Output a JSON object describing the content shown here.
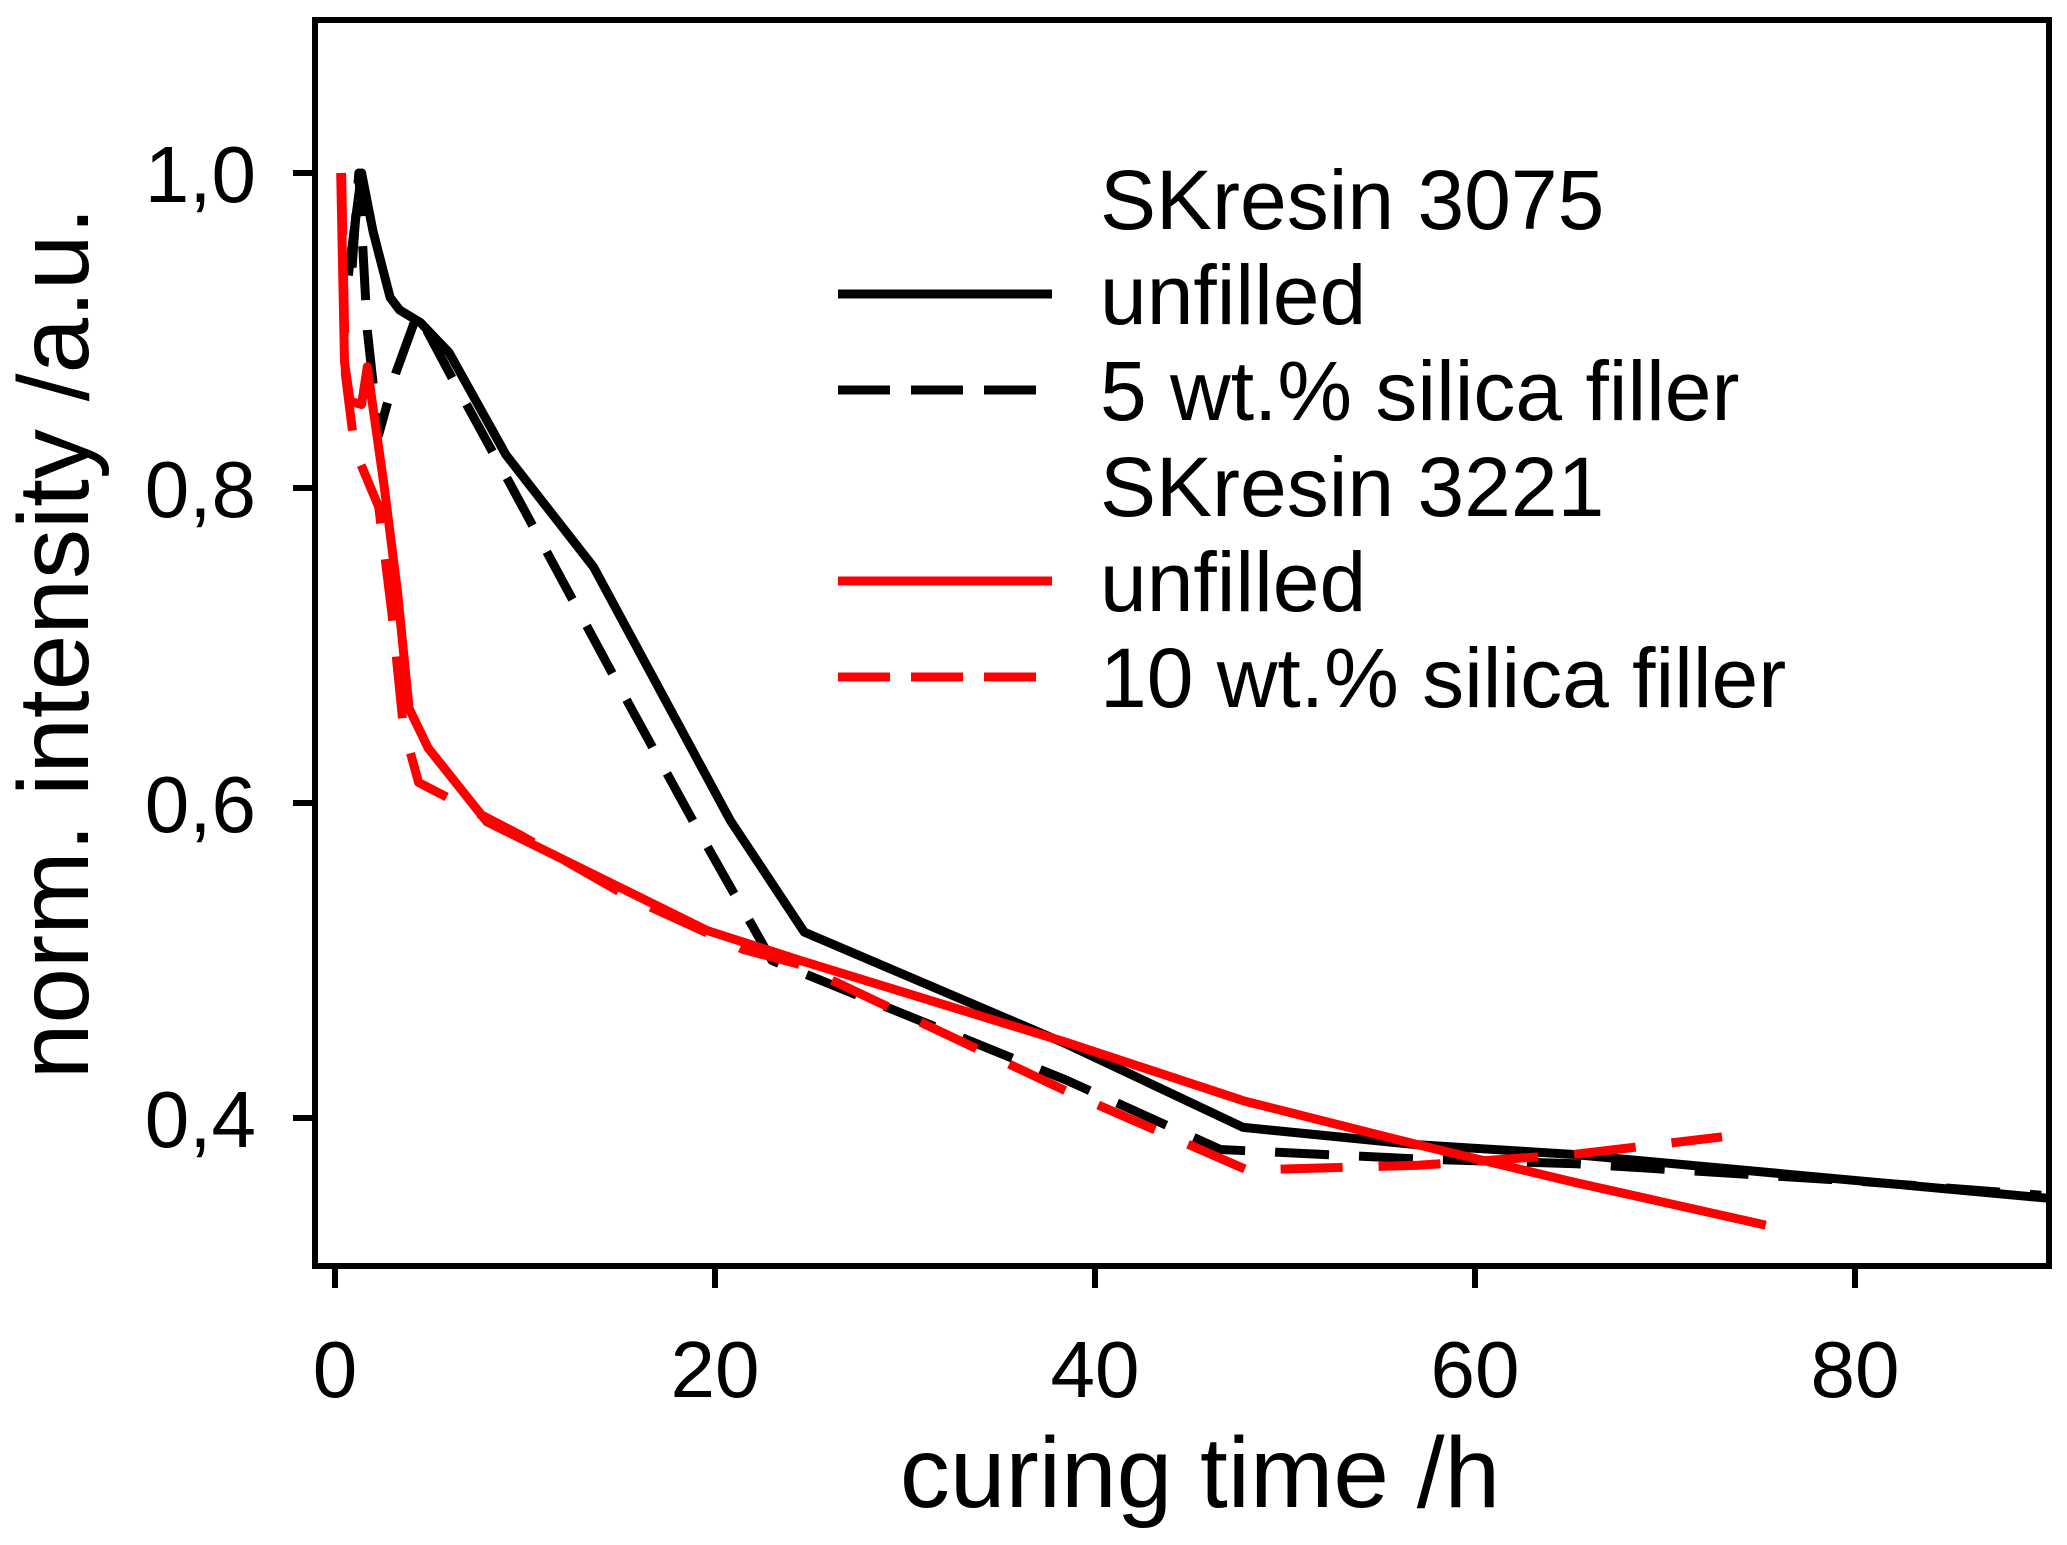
{
  "figure": {
    "background_color": "#ffffff",
    "accent_colors": {
      "black": "#000000",
      "red": "#ff0000"
    }
  },
  "chart_data": {
    "type": "line",
    "title": "",
    "xlabel": "curing time /h",
    "ylabel": "norm. intensity /a.u.",
    "xlim": [
      -1.05,
      90.2
    ],
    "ylim": [
      0.306,
      1.097
    ],
    "grid": false,
    "decimal_separator": "comma",
    "xticks": {
      "values": [
        0,
        20,
        40,
        60,
        80
      ],
      "labels": [
        "0",
        "20",
        "40",
        "60",
        "80"
      ]
    },
    "yticks": {
      "values": [
        1.0,
        0.8,
        0.6,
        0.4
      ],
      "labels": [
        "1,0",
        "0,8",
        "0,6",
        "0,4"
      ]
    },
    "legend": {
      "position": "upper right",
      "rows": [
        {
          "kind": "group-title",
          "label": "SKresin 3075"
        },
        {
          "kind": "entry",
          "label": "unfilled",
          "color": "#000000",
          "style": "solid"
        },
        {
          "kind": "entry",
          "label": "5 wt.% silica filler",
          "color": "#000000",
          "style": "dashed"
        },
        {
          "kind": "group-title",
          "label": "SKresin 3221"
        },
        {
          "kind": "entry",
          "label": "unfilled",
          "color": "#ff0000",
          "style": "solid"
        },
        {
          "kind": "entry",
          "label": "10 wt.% silica filler",
          "color": "#ff0000",
          "style": "dashed"
        }
      ]
    },
    "series": [
      {
        "name": "SKresin 3075 unfilled",
        "color": "#000000",
        "style": "solid",
        "points": [
          [
            0.7,
            0.935
          ],
          [
            1.4,
            1.0
          ],
          [
            2.0,
            0.963
          ],
          [
            2.9,
            0.921
          ],
          [
            3.4,
            0.913
          ],
          [
            4.5,
            0.905
          ],
          [
            6.0,
            0.886
          ],
          [
            9.0,
            0.821
          ],
          [
            13.6,
            0.75
          ],
          [
            20.8,
            0.589
          ],
          [
            24.7,
            0.518
          ],
          [
            38.5,
            0.447
          ],
          [
            47.8,
            0.394
          ],
          [
            57.0,
            0.383
          ],
          [
            65.0,
            0.377
          ],
          [
            90.2,
            0.349
          ]
        ]
      },
      {
        "name": "SKresin 3075 5 wt.% silica filler",
        "color": "#000000",
        "style": "dashed",
        "points": [
          [
            0.9,
            0.94
          ],
          [
            1.25,
            1.0
          ],
          [
            1.7,
            0.9
          ],
          [
            2.3,
            0.834
          ],
          [
            3.2,
            0.873
          ],
          [
            4.35,
            0.911
          ],
          [
            6.2,
            0.869
          ],
          [
            9.2,
            0.803
          ],
          [
            15.5,
            0.662
          ],
          [
            19.1,
            0.583
          ],
          [
            23.0,
            0.5
          ],
          [
            38.5,
            0.424
          ],
          [
            46.6,
            0.38
          ],
          [
            57.0,
            0.374
          ],
          [
            65.3,
            0.371
          ],
          [
            80.0,
            0.36
          ],
          [
            89.8,
            0.351
          ]
        ]
      },
      {
        "name": "SKresin 3221 unfilled",
        "color": "#ff0000",
        "style": "solid",
        "points": [
          [
            0.3,
            1.0
          ],
          [
            0.5,
            0.88
          ],
          [
            0.8,
            0.855
          ],
          [
            1.4,
            0.853
          ],
          [
            1.7,
            0.877
          ],
          [
            2.0,
            0.851
          ],
          [
            2.6,
            0.8
          ],
          [
            3.3,
            0.733
          ],
          [
            3.9,
            0.66
          ],
          [
            4.9,
            0.635
          ],
          [
            8.0,
            0.588
          ],
          [
            19.6,
            0.519
          ],
          [
            24.5,
            0.5
          ],
          [
            38.5,
            0.448
          ],
          [
            47.8,
            0.411
          ],
          [
            57.0,
            0.383
          ],
          [
            65.3,
            0.359
          ],
          [
            75.3,
            0.332
          ]
        ]
      },
      {
        "name": "SKresin 3221 10 wt.% silica filler",
        "color": "#ff0000",
        "style": "dashed",
        "points": [
          [
            0.35,
            1.0
          ],
          [
            0.55,
            0.872
          ],
          [
            1.05,
            0.824
          ],
          [
            2.3,
            0.788
          ],
          [
            3.0,
            0.72
          ],
          [
            3.6,
            0.648
          ],
          [
            4.4,
            0.613
          ],
          [
            9.7,
            0.58
          ],
          [
            15.5,
            0.54
          ],
          [
            21.5,
            0.507
          ],
          [
            24.3,
            0.498
          ],
          [
            38.5,
            0.417
          ],
          [
            48.0,
            0.367
          ],
          [
            57.0,
            0.37
          ],
          [
            65.3,
            0.377
          ],
          [
            73.0,
            0.388
          ]
        ]
      }
    ]
  }
}
